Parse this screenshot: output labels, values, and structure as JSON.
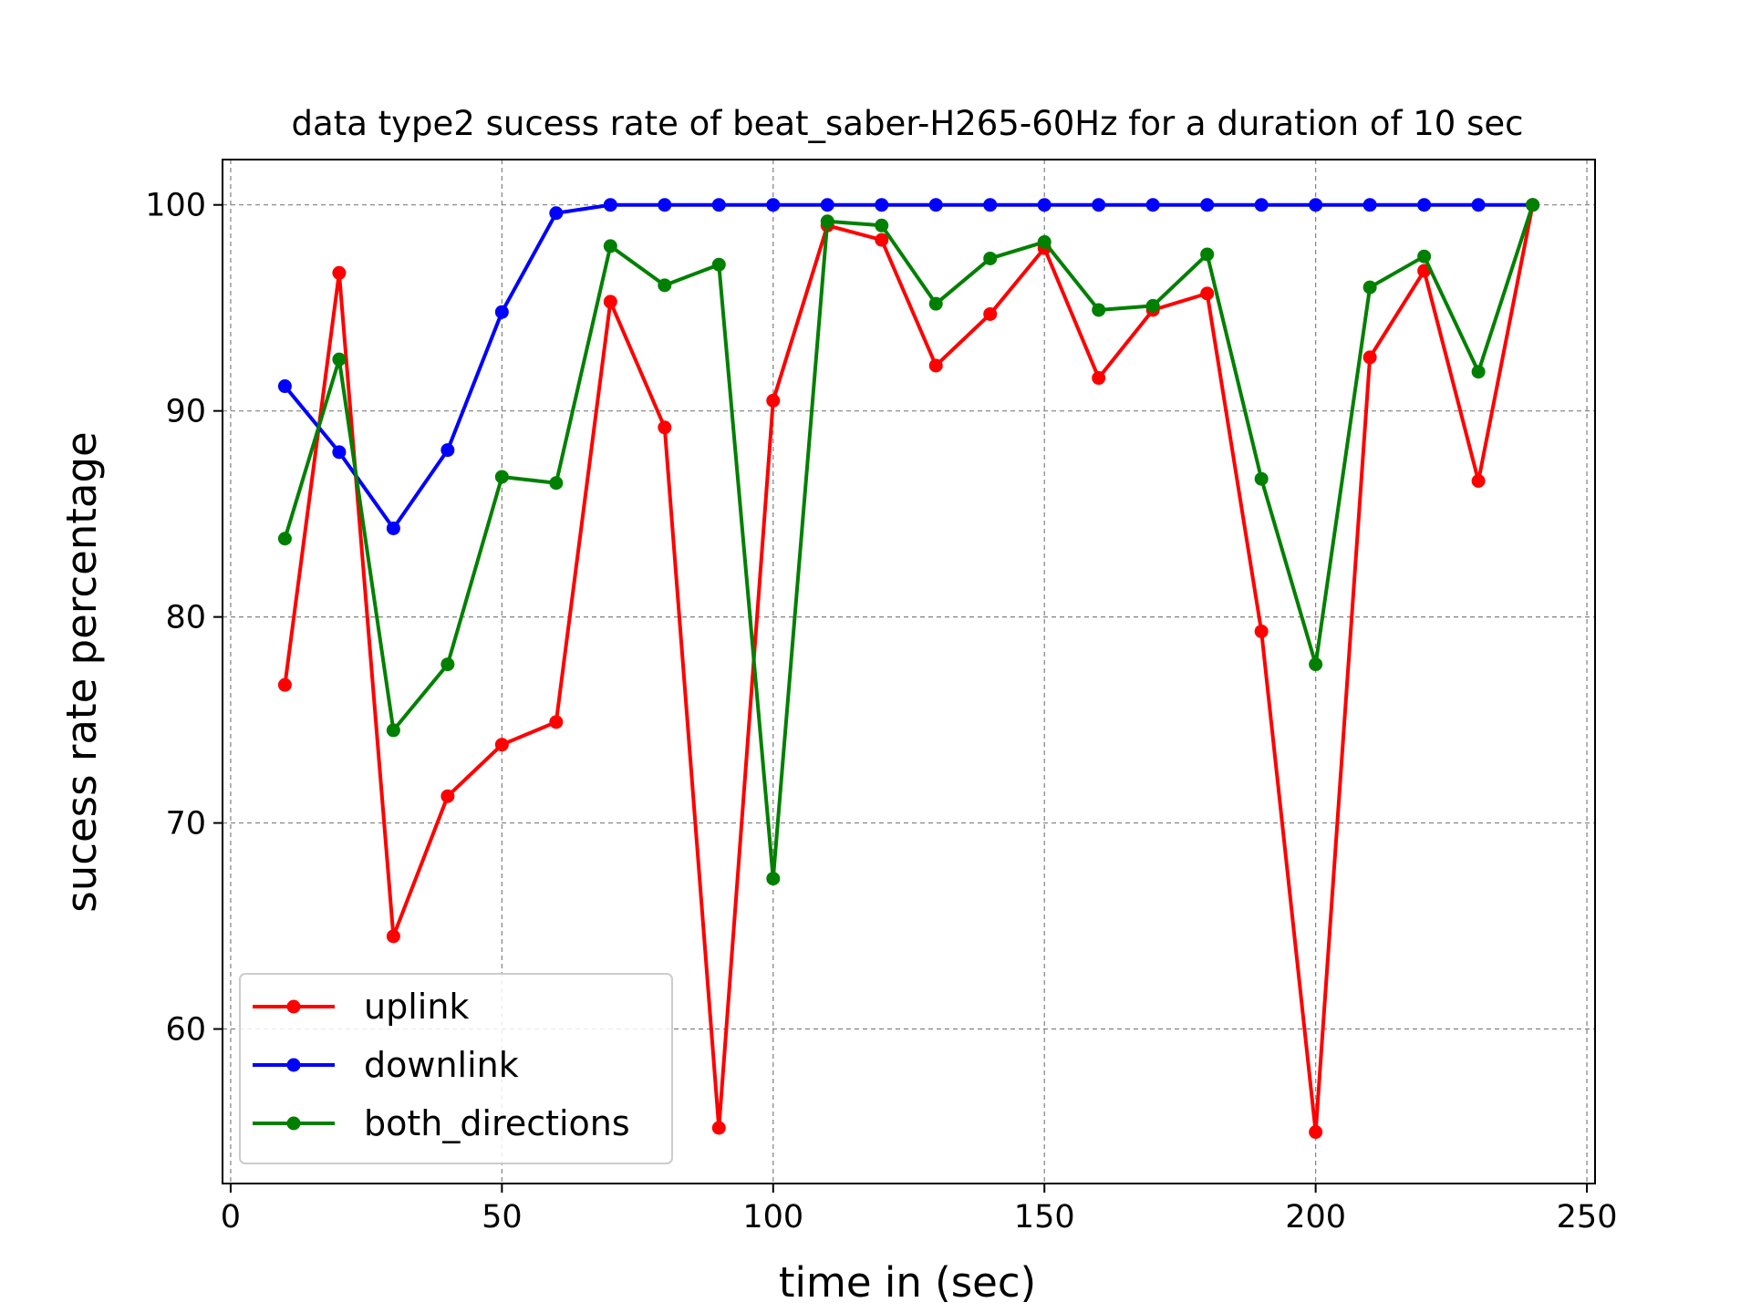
{
  "chart_data": {
    "type": "line",
    "title": "data type2 sucess rate of beat_saber-H265-60Hz for a duration of 10 sec",
    "xlabel": "time in (sec)",
    "ylabel": "sucess rate percentage",
    "xlim": [
      -1.5,
      251.5
    ],
    "ylim": [
      52.5,
      102.2
    ],
    "xticks": [
      0,
      50,
      100,
      150,
      200,
      250
    ],
    "yticks": [
      60,
      70,
      80,
      90,
      100
    ],
    "grid": true,
    "legend_position": "lower-left",
    "x": [
      10,
      20,
      30,
      40,
      50,
      60,
      70,
      80,
      90,
      100,
      110,
      120,
      130,
      140,
      150,
      160,
      170,
      180,
      190,
      200,
      210,
      220,
      230,
      240
    ],
    "series": [
      {
        "name": "uplink",
        "color": "#ff0000",
        "values": [
          76.7,
          96.7,
          64.5,
          71.3,
          73.8,
          74.9,
          95.3,
          89.2,
          55.2,
          90.5,
          99.0,
          98.3,
          92.2,
          94.7,
          97.9,
          91.6,
          94.9,
          95.7,
          79.3,
          55.0,
          92.6,
          96.8,
          86.6,
          100.0
        ]
      },
      {
        "name": "downlink",
        "color": "#0000ff",
        "values": [
          91.2,
          88.0,
          84.3,
          88.1,
          94.8,
          99.6,
          100.0,
          100.0,
          100.0,
          100.0,
          100.0,
          100.0,
          100.0,
          100.0,
          100.0,
          100.0,
          100.0,
          100.0,
          100.0,
          100.0,
          100.0,
          100.0,
          100.0,
          100.0
        ]
      },
      {
        "name": "both_directions",
        "color": "#008000",
        "values": [
          83.8,
          92.5,
          74.5,
          77.7,
          86.8,
          86.5,
          98.0,
          96.1,
          97.1,
          67.3,
          99.2,
          99.0,
          95.2,
          97.4,
          98.2,
          94.9,
          95.1,
          97.6,
          86.7,
          77.7,
          96.0,
          97.5,
          91.9,
          100.0
        ]
      }
    ]
  }
}
